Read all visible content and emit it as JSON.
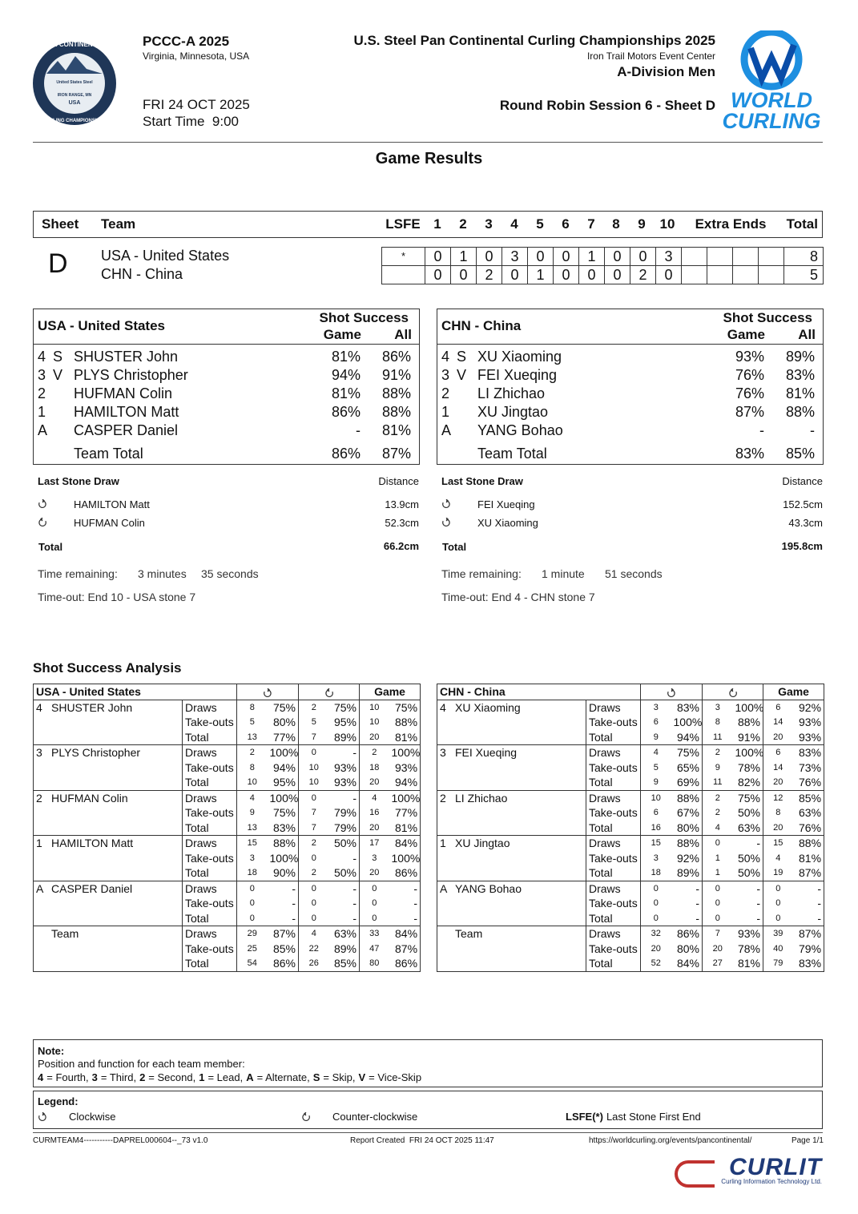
{
  "header": {
    "event": "PCCC-A 2025",
    "location": "Virginia, Minnesota, USA",
    "date": "FRI 24 OCT 2025",
    "start_time": "Start Time  9:00",
    "title": "U.S. Steel Pan Continental Curling Championships 2025",
    "venue": "Iron Trail Motors Event Center",
    "division": "A-Division Men",
    "session": "Round Robin Session 6 - Sheet D",
    "left_logo": [
      "PAN CONTINENTAL",
      "United States Steel",
      "IRON RANGE, MN",
      "USA",
      "CURLING CHAMPIONSHIPS"
    ],
    "right_logo": [
      "WORLD",
      "CURLING"
    ]
  },
  "page_title": "Game Results",
  "scoreboard": {
    "headers": [
      "Sheet",
      "Team",
      "LSFE",
      "1",
      "2",
      "3",
      "4",
      "5",
      "6",
      "7",
      "8",
      "9",
      "10",
      "Extra Ends",
      "Total"
    ],
    "sheet": "D",
    "teams": [
      {
        "name": "USA - United States",
        "lsfe": "*",
        "ends": [
          "0",
          "1",
          "0",
          "3",
          "0",
          "0",
          "1",
          "0",
          "0",
          "3"
        ],
        "total": "8"
      },
      {
        "name": "CHN - China",
        "ends": [
          "0",
          "0",
          "2",
          "0",
          "1",
          "0",
          "0",
          "0",
          "2",
          "0"
        ],
        "total": "5"
      }
    ]
  },
  "teams": [
    {
      "name": "USA - United States",
      "shot_success": "Shot Success",
      "game_label": "Game",
      "all_label": "All",
      "players": [
        {
          "pos": "4",
          "role": "S",
          "name": "SHUSTER John",
          "game": "81%",
          "all": "86%"
        },
        {
          "pos": "3",
          "role": "V",
          "name": "PLYS Christopher",
          "game": "94%",
          "all": "91%"
        },
        {
          "pos": "2",
          "name": "HUFMAN Colin",
          "game": "81%",
          "all": "88%"
        },
        {
          "pos": "1",
          "name": "HAMILTON Matt",
          "game": "86%",
          "all": "88%"
        },
        {
          "pos": "A",
          "name": "CASPER Daniel",
          "game": "-",
          "all": "81%"
        }
      ],
      "team_total": {
        "label": "Team Total",
        "game": "86%",
        "all": "87%"
      },
      "lsd": {
        "title": "Last Stone Draw",
        "distance_label": "Distance",
        "rows": [
          {
            "rotation": "cw",
            "name": "HAMILTON Matt",
            "distance": "13.9cm"
          },
          {
            "rotation": "ccw",
            "name": "HUFMAN Colin",
            "distance": "52.3cm"
          }
        ],
        "total_label": "Total",
        "total": "66.2cm"
      },
      "time_remaining": {
        "label": "Time remaining:",
        "value": [
          "3 minutes",
          "35 seconds"
        ]
      },
      "timeout": "Time-out: End 10 - USA stone 7"
    },
    {
      "name": "CHN - China",
      "shot_success": "Shot Success",
      "game_label": "Game",
      "all_label": "All",
      "players": [
        {
          "pos": "4",
          "role": "S",
          "name": "XU Xiaoming",
          "game": "93%",
          "all": "89%"
        },
        {
          "pos": "3",
          "role": "V",
          "name": "FEI Xueqing",
          "game": "76%",
          "all": "83%"
        },
        {
          "pos": "2",
          "name": "LI Zhichao",
          "game": "76%",
          "all": "81%"
        },
        {
          "pos": "1",
          "name": "XU Jingtao",
          "game": "87%",
          "all": "88%"
        },
        {
          "pos": "A",
          "name": "YANG Bohao",
          "game": "-",
          "all": "-"
        }
      ],
      "team_total": {
        "label": "Team Total",
        "game": "83%",
        "all": "85%"
      },
      "lsd": {
        "title": "Last Stone Draw",
        "distance_label": "Distance",
        "rows": [
          {
            "rotation": "cw",
            "name": "FEI Xueqing",
            "distance": "152.5cm"
          },
          {
            "rotation": "cw",
            "name": "XU Xiaoming",
            "distance": "43.3cm"
          }
        ],
        "total_label": "Total",
        "total": "195.8cm"
      },
      "time_remaining": {
        "label": "Time remaining:",
        "value": [
          "1 minute",
          "51 seconds"
        ]
      },
      "timeout": "Time-out: End 4 - CHN stone 7"
    }
  ],
  "analysis": {
    "title": "Shot Success Analysis",
    "tables": [
      {
        "team": "USA - United States",
        "game_label": "Game",
        "groups": [
          {
            "pos": "4",
            "name": "SHUSTER John",
            "rows": [
              [
                "Draws",
                "8",
                "75%",
                "2",
                "75%",
                "10",
                "75%"
              ],
              [
                "Take-outs",
                "5",
                "80%",
                "5",
                "95%",
                "10",
                "88%"
              ],
              [
                "Total",
                "13",
                "77%",
                "7",
                "89%",
                "20",
                "81%"
              ]
            ]
          },
          {
            "pos": "3",
            "name": "PLYS Christopher",
            "rows": [
              [
                "Draws",
                "2",
                "100%",
                "0",
                "-",
                "2",
                "100%"
              ],
              [
                "Take-outs",
                "8",
                "94%",
                "10",
                "93%",
                "18",
                "93%"
              ],
              [
                "Total",
                "10",
                "95%",
                "10",
                "93%",
                "20",
                "94%"
              ]
            ]
          },
          {
            "pos": "2",
            "name": "HUFMAN Colin",
            "rows": [
              [
                "Draws",
                "4",
                "100%",
                "0",
                "-",
                "4",
                "100%"
              ],
              [
                "Take-outs",
                "9",
                "75%",
                "7",
                "79%",
                "16",
                "77%"
              ],
              [
                "Total",
                "13",
                "83%",
                "7",
                "79%",
                "20",
                "81%"
              ]
            ]
          },
          {
            "pos": "1",
            "name": "HAMILTON Matt",
            "rows": [
              [
                "Draws",
                "15",
                "88%",
                "2",
                "50%",
                "17",
                "84%"
              ],
              [
                "Take-outs",
                "3",
                "100%",
                "0",
                "-",
                "3",
                "100%"
              ],
              [
                "Total",
                "18",
                "90%",
                "2",
                "50%",
                "20",
                "86%"
              ]
            ]
          },
          {
            "pos": "A",
            "name": "CASPER Daniel",
            "rows": [
              [
                "Draws",
                "0",
                "-",
                "0",
                "-",
                "0",
                "-"
              ],
              [
                "Take-outs",
                "0",
                "-",
                "0",
                "-",
                "0",
                "-"
              ],
              [
                "Total",
                "0",
                "-",
                "0",
                "-",
                "0",
                "-"
              ]
            ]
          },
          {
            "name": "Team",
            "rows": [
              [
                "Draws",
                "29",
                "87%",
                "4",
                "63%",
                "33",
                "84%"
              ],
              [
                "Take-outs",
                "25",
                "85%",
                "22",
                "89%",
                "47",
                "87%"
              ],
              [
                "Total",
                "54",
                "86%",
                "26",
                "85%",
                "80",
                "86%"
              ]
            ]
          }
        ]
      },
      {
        "team": "CHN - China",
        "game_label": "Game",
        "groups": [
          {
            "pos": "4",
            "name": "XU Xiaoming",
            "rows": [
              [
                "Draws",
                "3",
                "83%",
                "3",
                "100%",
                "6",
                "92%"
              ],
              [
                "Take-outs",
                "6",
                "100%",
                "8",
                "88%",
                "14",
                "93%"
              ],
              [
                "Total",
                "9",
                "94%",
                "11",
                "91%",
                "20",
                "93%"
              ]
            ]
          },
          {
            "pos": "3",
            "name": "FEI Xueqing",
            "rows": [
              [
                "Draws",
                "4",
                "75%",
                "2",
                "100%",
                "6",
                "83%"
              ],
              [
                "Take-outs",
                "5",
                "65%",
                "9",
                "78%",
                "14",
                "73%"
              ],
              [
                "Total",
                "9",
                "69%",
                "11",
                "82%",
                "20",
                "76%"
              ]
            ]
          },
          {
            "pos": "2",
            "name": "LI Zhichao",
            "rows": [
              [
                "Draws",
                "10",
                "88%",
                "2",
                "75%",
                "12",
                "85%"
              ],
              [
                "Take-outs",
                "6",
                "67%",
                "2",
                "50%",
                "8",
                "63%"
              ],
              [
                "Total",
                "16",
                "80%",
                "4",
                "63%",
                "20",
                "76%"
              ]
            ]
          },
          {
            "pos": "1",
            "name": "XU Jingtao",
            "rows": [
              [
                "Draws",
                "15",
                "88%",
                "0",
                "-",
                "15",
                "88%"
              ],
              [
                "Take-outs",
                "3",
                "92%",
                "1",
                "50%",
                "4",
                "81%"
              ],
              [
                "Total",
                "18",
                "89%",
                "1",
                "50%",
                "19",
                "87%"
              ]
            ]
          },
          {
            "pos": "A",
            "name": "YANG Bohao",
            "rows": [
              [
                "Draws",
                "0",
                "-",
                "0",
                "-",
                "0",
                "-"
              ],
              [
                "Take-outs",
                "0",
                "-",
                "0",
                "-",
                "0",
                "-"
              ],
              [
                "Total",
                "0",
                "-",
                "0",
                "-",
                "0",
                "-"
              ]
            ]
          },
          {
            "name": "Team",
            "rows": [
              [
                "Draws",
                "32",
                "86%",
                "7",
                "93%",
                "39",
                "87%"
              ],
              [
                "Take-outs",
                "20",
                "80%",
                "20",
                "78%",
                "40",
                "79%"
              ],
              [
                "Total",
                "52",
                "84%",
                "27",
                "81%",
                "79",
                "83%"
              ]
            ]
          }
        ]
      }
    ]
  },
  "note": {
    "title": "Note:",
    "line": "Position and function for each team member:",
    "items": [
      {
        "key": "4",
        "text": "= Fourth,"
      },
      {
        "key": "3",
        "text": "= Third,"
      },
      {
        "key": "2",
        "text": "= Second,"
      },
      {
        "key": "1",
        "text": "= Lead,"
      },
      {
        "key": "A",
        "text": "= Alternate,"
      },
      {
        "key": "S",
        "text": "= Skip,"
      },
      {
        "key": "V",
        "text": "= Vice-Skip"
      }
    ]
  },
  "legend": {
    "title": "Legend:",
    "items": [
      {
        "rotation": "cw",
        "text": "Clockwise"
      },
      {
        "rotation": "ccw",
        "text": "Counter-clockwise"
      },
      {
        "key": "LSFE(*)",
        "text": "Last Stone First End"
      }
    ]
  },
  "footer": {
    "code": "CURMTEAM4-----------DAPREL000604--_73 v1.0",
    "report": "Report Created  FRI 24 OCT 2025 11:47",
    "url": "https://worldcurling.org/events/pancontinental/",
    "page": "Page 1/1",
    "brand": "CURLIT",
    "brand_sub": "Curling Information Technology Ltd."
  }
}
